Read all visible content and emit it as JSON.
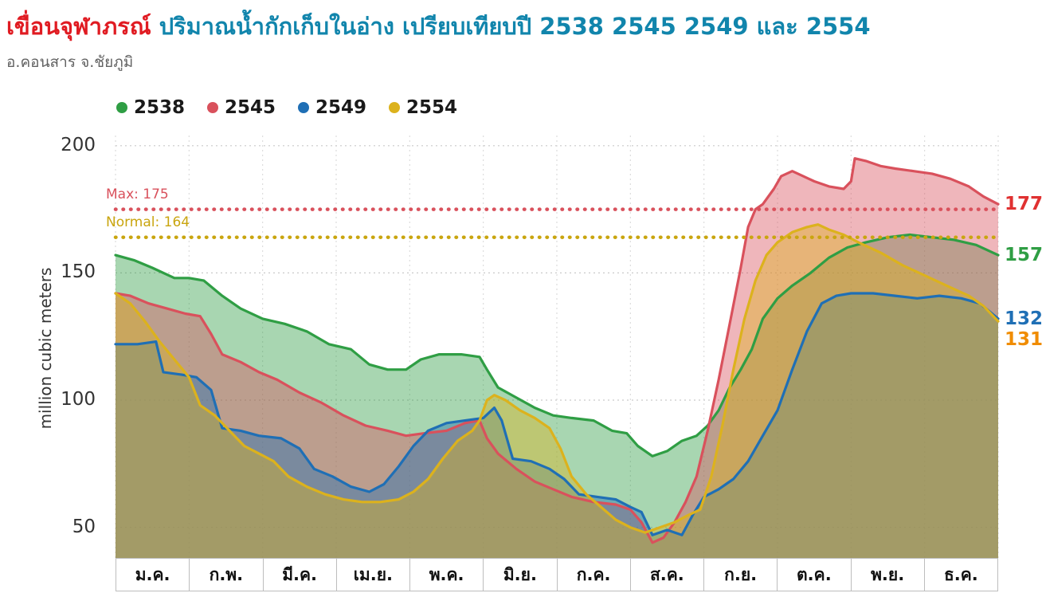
{
  "header": {
    "title_name": "เขื่อนจุฬาภรณ์",
    "title_rest": "ปริมาณน้ำกักเก็บในอ่าง เปรียบเทียบปี 2538 2545 2549 และ 2554",
    "subtitle": "อ.คอนสาร จ.ชัยภูมิ"
  },
  "colors": {
    "title_name": "#e01b22",
    "title_rest": "#1185ac",
    "subtitle": "#636363"
  },
  "chart_data": {
    "type": "area",
    "title": "เขื่อนจุฬาภรณ์ ปริมาณน้ำกักเก็บในอ่าง เปรียบเทียบปี 2538 2545 2549 และ 2554",
    "xlabel": "",
    "ylabel": "million cubic meters",
    "ylim": [
      38,
      204
    ],
    "yticks": [
      50,
      100,
      150,
      200
    ],
    "x_months": 12,
    "grid": true,
    "legend_position": "top-left",
    "categories": [
      "ม.ค.",
      "ก.พ.",
      "มี.ค.",
      "เม.ย.",
      "พ.ค.",
      "มิ.ย.",
      "ก.ค.",
      "ส.ค.",
      "ก.ย.",
      "ต.ค.",
      "พ.ย.",
      "ธ.ค."
    ],
    "legend": [
      {
        "label": "2538",
        "color": "#2f9e44"
      },
      {
        "label": "2545",
        "color": "#d9515c"
      },
      {
        "label": "2549",
        "color": "#1f6fb5"
      },
      {
        "label": "2554",
        "color": "#dcb21d"
      }
    ],
    "reference_lines": [
      {
        "label": "Max: 175",
        "value": 175,
        "color": "#d9515c"
      },
      {
        "label": "Normal: 164",
        "value": 164,
        "color": "#c9a50f"
      }
    ],
    "end_labels": [
      {
        "text": "177",
        "value": 177,
        "color": "#e03131"
      },
      {
        "text": "157",
        "value": 157,
        "color": "#2f9e44"
      },
      {
        "text": "132",
        "value": 132,
        "color": "#1f6fb5"
      },
      {
        "text": "131",
        "value": 131,
        "color": "#f08c00"
      }
    ],
    "series": [
      {
        "name": "2538",
        "color": "#2f9e44",
        "fill_opacity": 0.42,
        "points": [
          [
            0,
            157
          ],
          [
            0.25,
            155
          ],
          [
            0.5,
            152
          ],
          [
            0.8,
            148
          ],
          [
            1.0,
            148
          ],
          [
            1.2,
            147
          ],
          [
            1.45,
            141
          ],
          [
            1.7,
            136
          ],
          [
            2.0,
            132
          ],
          [
            2.3,
            130
          ],
          [
            2.6,
            127
          ],
          [
            2.9,
            122
          ],
          [
            3.2,
            120
          ],
          [
            3.45,
            114
          ],
          [
            3.7,
            112
          ],
          [
            3.95,
            112
          ],
          [
            4.15,
            116
          ],
          [
            4.4,
            118
          ],
          [
            4.7,
            118
          ],
          [
            4.95,
            117
          ],
          [
            5.05,
            112
          ],
          [
            5.2,
            105
          ],
          [
            5.45,
            101
          ],
          [
            5.7,
            97
          ],
          [
            5.95,
            94
          ],
          [
            6.2,
            93
          ],
          [
            6.5,
            92
          ],
          [
            6.75,
            88
          ],
          [
            6.95,
            87
          ],
          [
            7.1,
            82
          ],
          [
            7.3,
            78
          ],
          [
            7.5,
            80
          ],
          [
            7.7,
            84
          ],
          [
            7.9,
            86
          ],
          [
            8.05,
            90
          ],
          [
            8.2,
            96
          ],
          [
            8.35,
            105
          ],
          [
            8.5,
            112
          ],
          [
            8.65,
            120
          ],
          [
            8.8,
            132
          ],
          [
            9.0,
            140
          ],
          [
            9.2,
            145
          ],
          [
            9.45,
            150
          ],
          [
            9.7,
            156
          ],
          [
            9.95,
            160
          ],
          [
            10.2,
            162
          ],
          [
            10.5,
            164
          ],
          [
            10.8,
            165
          ],
          [
            11.1,
            164
          ],
          [
            11.4,
            163
          ],
          [
            11.7,
            161
          ],
          [
            12,
            157
          ]
        ]
      },
      {
        "name": "2545",
        "color": "#d9515c",
        "fill_opacity": 0.42,
        "points": [
          [
            0,
            142
          ],
          [
            0.2,
            141
          ],
          [
            0.45,
            138
          ],
          [
            0.7,
            136
          ],
          [
            0.95,
            134
          ],
          [
            1.15,
            133
          ],
          [
            1.3,
            126
          ],
          [
            1.45,
            118
          ],
          [
            1.7,
            115
          ],
          [
            1.95,
            111
          ],
          [
            2.2,
            108
          ],
          [
            2.5,
            103
          ],
          [
            2.8,
            99
          ],
          [
            3.1,
            94
          ],
          [
            3.4,
            90
          ],
          [
            3.7,
            88
          ],
          [
            3.95,
            86
          ],
          [
            4.2,
            87
          ],
          [
            4.5,
            88
          ],
          [
            4.75,
            91
          ],
          [
            4.95,
            92
          ],
          [
            5.05,
            85
          ],
          [
            5.2,
            79
          ],
          [
            5.45,
            73
          ],
          [
            5.7,
            68
          ],
          [
            5.95,
            65
          ],
          [
            6.2,
            62
          ],
          [
            6.5,
            60
          ],
          [
            6.8,
            59
          ],
          [
            7.0,
            57
          ],
          [
            7.15,
            52
          ],
          [
            7.3,
            44
          ],
          [
            7.45,
            46
          ],
          [
            7.6,
            52
          ],
          [
            7.75,
            60
          ],
          [
            7.9,
            70
          ],
          [
            8.05,
            88
          ],
          [
            8.2,
            108
          ],
          [
            8.35,
            130
          ],
          [
            8.5,
            152
          ],
          [
            8.6,
            168
          ],
          [
            8.7,
            175
          ],
          [
            8.8,
            177
          ],
          [
            8.95,
            183
          ],
          [
            9.05,
            188
          ],
          [
            9.2,
            190
          ],
          [
            9.35,
            188
          ],
          [
            9.5,
            186
          ],
          [
            9.7,
            184
          ],
          [
            9.9,
            183
          ],
          [
            10.0,
            186
          ],
          [
            10.05,
            195
          ],
          [
            10.2,
            194
          ],
          [
            10.4,
            192
          ],
          [
            10.6,
            191
          ],
          [
            10.85,
            190
          ],
          [
            11.1,
            189
          ],
          [
            11.35,
            187
          ],
          [
            11.6,
            184
          ],
          [
            11.8,
            180
          ],
          [
            12,
            177
          ]
        ]
      },
      {
        "name": "2549",
        "color": "#1f6fb5",
        "fill_opacity": 0.42,
        "points": [
          [
            0,
            122
          ],
          [
            0.3,
            122
          ],
          [
            0.55,
            123
          ],
          [
            0.65,
            111
          ],
          [
            0.9,
            110
          ],
          [
            1.1,
            109
          ],
          [
            1.3,
            104
          ],
          [
            1.45,
            89
          ],
          [
            1.7,
            88
          ],
          [
            1.95,
            86
          ],
          [
            2.25,
            85
          ],
          [
            2.5,
            81
          ],
          [
            2.7,
            73
          ],
          [
            2.95,
            70
          ],
          [
            3.2,
            66
          ],
          [
            3.45,
            64
          ],
          [
            3.65,
            67
          ],
          [
            3.85,
            74
          ],
          [
            4.05,
            82
          ],
          [
            4.25,
            88
          ],
          [
            4.5,
            91
          ],
          [
            4.75,
            92
          ],
          [
            5.0,
            93
          ],
          [
            5.15,
            97
          ],
          [
            5.25,
            92
          ],
          [
            5.4,
            77
          ],
          [
            5.65,
            76
          ],
          [
            5.9,
            73
          ],
          [
            6.1,
            69
          ],
          [
            6.3,
            63
          ],
          [
            6.55,
            62
          ],
          [
            6.8,
            61
          ],
          [
            7.0,
            58
          ],
          [
            7.15,
            56
          ],
          [
            7.3,
            47
          ],
          [
            7.5,
            49
          ],
          [
            7.7,
            47
          ],
          [
            7.85,
            55
          ],
          [
            8.0,
            62
          ],
          [
            8.2,
            65
          ],
          [
            8.4,
            69
          ],
          [
            8.6,
            76
          ],
          [
            8.8,
            86
          ],
          [
            9.0,
            96
          ],
          [
            9.2,
            112
          ],
          [
            9.4,
            127
          ],
          [
            9.6,
            138
          ],
          [
            9.8,
            141
          ],
          [
            10.0,
            142
          ],
          [
            10.3,
            142
          ],
          [
            10.6,
            141
          ],
          [
            10.9,
            140
          ],
          [
            11.2,
            141
          ],
          [
            11.5,
            140
          ],
          [
            11.75,
            138
          ],
          [
            12,
            132
          ]
        ]
      },
      {
        "name": "2554",
        "color": "#dcb21d",
        "fill_opacity": 0.42,
        "points": [
          [
            0,
            142
          ],
          [
            0.2,
            138
          ],
          [
            0.4,
            131
          ],
          [
            0.6,
            123
          ],
          [
            0.8,
            116
          ],
          [
            1.0,
            109
          ],
          [
            1.15,
            98
          ],
          [
            1.35,
            94
          ],
          [
            1.55,
            88
          ],
          [
            1.75,
            82
          ],
          [
            1.95,
            79
          ],
          [
            2.15,
            76
          ],
          [
            2.35,
            70
          ],
          [
            2.6,
            66
          ],
          [
            2.85,
            63
          ],
          [
            3.1,
            61
          ],
          [
            3.35,
            60
          ],
          [
            3.6,
            60
          ],
          [
            3.85,
            61
          ],
          [
            4.05,
            64
          ],
          [
            4.25,
            69
          ],
          [
            4.45,
            77
          ],
          [
            4.65,
            84
          ],
          [
            4.85,
            88
          ],
          [
            4.95,
            92
          ],
          [
            5.05,
            100
          ],
          [
            5.15,
            102
          ],
          [
            5.3,
            100
          ],
          [
            5.5,
            96
          ],
          [
            5.7,
            93
          ],
          [
            5.9,
            89
          ],
          [
            6.05,
            81
          ],
          [
            6.2,
            70
          ],
          [
            6.4,
            63
          ],
          [
            6.6,
            58
          ],
          [
            6.8,
            53
          ],
          [
            7.0,
            50
          ],
          [
            7.2,
            48
          ],
          [
            7.4,
            50
          ],
          [
            7.6,
            52
          ],
          [
            7.8,
            55
          ],
          [
            7.95,
            57
          ],
          [
            8.1,
            70
          ],
          [
            8.25,
            90
          ],
          [
            8.4,
            112
          ],
          [
            8.55,
            132
          ],
          [
            8.7,
            147
          ],
          [
            8.85,
            157
          ],
          [
            9.0,
            162
          ],
          [
            9.2,
            166
          ],
          [
            9.4,
            168
          ],
          [
            9.55,
            169
          ],
          [
            9.7,
            167
          ],
          [
            9.9,
            165
          ],
          [
            10.1,
            162
          ],
          [
            10.4,
            158
          ],
          [
            10.7,
            153
          ],
          [
            11.0,
            149
          ],
          [
            11.3,
            145
          ],
          [
            11.6,
            141
          ],
          [
            11.8,
            137
          ],
          [
            12,
            131
          ]
        ]
      }
    ]
  }
}
